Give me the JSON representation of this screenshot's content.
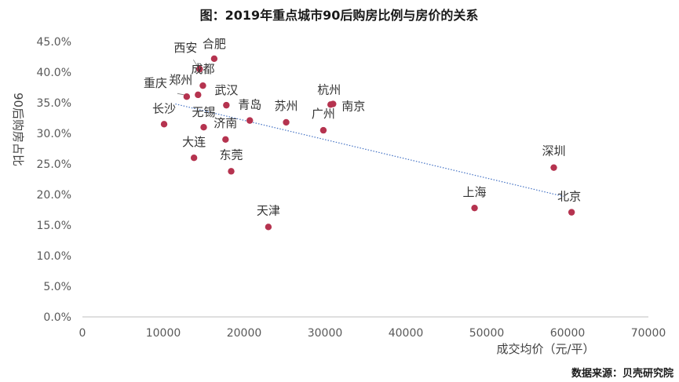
{
  "chart_data": {
    "type": "scatter",
    "title": "图：2019年重点城市90后购房比例与房价的关系",
    "xlabel": "成交均价（元/平）",
    "ylabel": "90后购房占比",
    "source": "数据来源：贝壳研究院",
    "xlim": [
      0,
      70000
    ],
    "ylim": [
      0,
      45
    ],
    "x_ticks": [
      0,
      10000,
      20000,
      30000,
      40000,
      50000,
      60000,
      70000
    ],
    "x_tick_labels": [
      "0",
      "10000",
      "20000",
      "30000",
      "40000",
      "50000",
      "60000",
      "70000"
    ],
    "y_ticks": [
      0,
      5,
      10,
      15,
      20,
      25,
      30,
      35,
      40,
      45
    ],
    "y_tick_labels": [
      "0.0%",
      "5.0%",
      "10.0%",
      "15.0%",
      "20.0%",
      "25.0%",
      "30.0%",
      "35.0%",
      "40.0%",
      "45.0%"
    ],
    "colors": {
      "point": "#b5334f",
      "trendline": "#4472c4",
      "axis": "#bfbfbf"
    },
    "trendline": {
      "x": [
        11500,
        59500
      ],
      "y": [
        34.8,
        19.7
      ],
      "style": "dotted"
    },
    "points": [
      {
        "name": "西安",
        "x": 14500,
        "y": 40.5
      },
      {
        "name": "合肥",
        "x": 16300,
        "y": 42.2
      },
      {
        "name": "成都",
        "x": 14900,
        "y": 37.8
      },
      {
        "name": "郑州",
        "x": 14300,
        "y": 36.3
      },
      {
        "name": "重庆",
        "x": 12900,
        "y": 36.0
      },
      {
        "name": "武汉",
        "x": 17800,
        "y": 34.6
      },
      {
        "name": "长沙",
        "x": 10100,
        "y": 31.5
      },
      {
        "name": "无锡",
        "x": 15000,
        "y": 31.0
      },
      {
        "name": "青岛",
        "x": 20700,
        "y": 32.1
      },
      {
        "name": "济南",
        "x": 17700,
        "y": 29.0
      },
      {
        "name": "苏州",
        "x": 25200,
        "y": 31.8
      },
      {
        "name": "杭州",
        "x": 30700,
        "y": 34.7
      },
      {
        "name": "南京",
        "x": 31000,
        "y": 34.8
      },
      {
        "name": "广州",
        "x": 29800,
        "y": 30.5
      },
      {
        "name": "大连",
        "x": 13800,
        "y": 26.0
      },
      {
        "name": "东莞",
        "x": 18400,
        "y": 23.8
      },
      {
        "name": "天津",
        "x": 23000,
        "y": 14.7
      },
      {
        "name": "上海",
        "x": 48500,
        "y": 17.8
      },
      {
        "name": "深圳",
        "x": 58300,
        "y": 24.4
      },
      {
        "name": "北京",
        "x": 60500,
        "y": 17.1
      }
    ]
  }
}
